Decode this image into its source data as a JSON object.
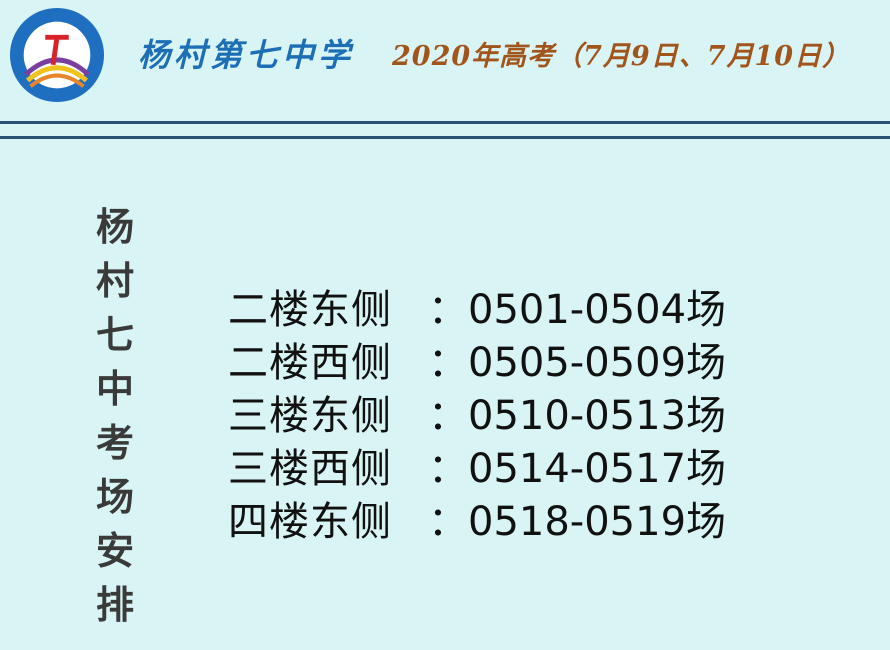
{
  "header": {
    "logo_text": "杨村第七中学 YANG CUN NO.7 MIDDLE SCHOOL",
    "school_name": "杨村第七中学",
    "exam_title": "2020年高考（7月9日、7月10日）"
  },
  "side_title": [
    "杨",
    "村",
    "七",
    "中",
    "考",
    "场",
    "安",
    "排"
  ],
  "rows": [
    {
      "location": "二楼东侧",
      "sep": "：",
      "rooms": "0501-0504场"
    },
    {
      "location": "二楼西侧",
      "sep": "：",
      "rooms": "0505-0509场"
    },
    {
      "location": "三楼东侧",
      "sep": "：",
      "rooms": "0510-0513场"
    },
    {
      "location": "三楼西侧",
      "sep": "：",
      "rooms": "0514-0517场"
    },
    {
      "location": "四楼东侧",
      "sep": "：",
      "rooms": "0518-0519场"
    }
  ],
  "colors": {
    "background": "#d8f4f4",
    "school": "#1d6fb5",
    "exam": "#a2551b",
    "rule": "#2b4f75"
  }
}
